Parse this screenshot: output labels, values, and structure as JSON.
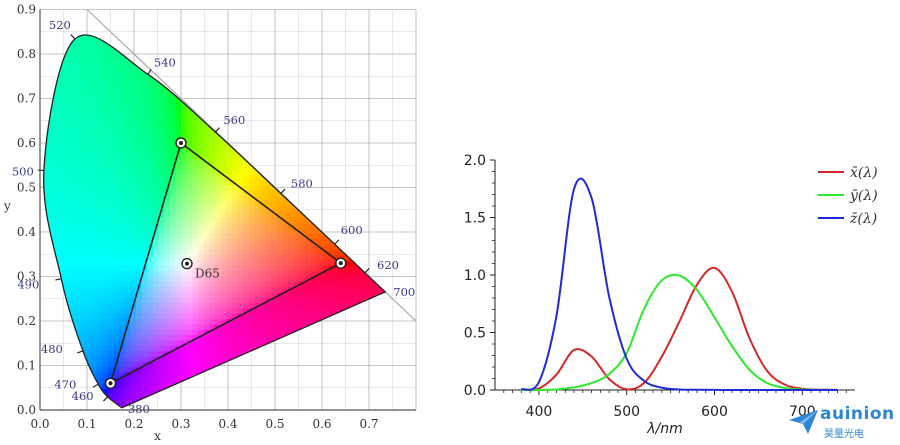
{
  "chart_data": [
    {
      "type": "scatter",
      "xlabel": "x",
      "ylabel": "y",
      "xlim": [
        0.0,
        0.8
      ],
      "ylim": [
        0.0,
        0.9
      ],
      "x_ticks": [
        "0.0",
        "0.1",
        "0.2",
        "0.3",
        "0.4",
        "0.5",
        "0.6",
        "0.7"
      ],
      "y_ticks": [
        "0.0",
        "0.1",
        "0.2",
        "0.3",
        "0.4",
        "0.5",
        "0.6",
        "0.7",
        "0.8",
        "0.9"
      ],
      "grid": true,
      "spectral_locus": [
        {
          "nm": "380",
          "x": 0.1741,
          "y": 0.005
        },
        {
          "nm": "460",
          "x": 0.144,
          "y": 0.0297
        },
        {
          "nm": "470",
          "x": 0.1241,
          "y": 0.0578
        },
        {
          "nm": "480",
          "x": 0.0913,
          "y": 0.1327
        },
        {
          "nm": "490",
          "x": 0.0454,
          "y": 0.295
        },
        {
          "nm": "500",
          "x": 0.0082,
          "y": 0.5384
        },
        {
          "nm": "520",
          "x": 0.0743,
          "y": 0.8338
        },
        {
          "nm": "540",
          "x": 0.2296,
          "y": 0.7543
        },
        {
          "nm": "560",
          "x": 0.3731,
          "y": 0.6245
        },
        {
          "nm": "580",
          "x": 0.5125,
          "y": 0.4866
        },
        {
          "nm": "600",
          "x": 0.627,
          "y": 0.3725
        },
        {
          "nm": "620",
          "x": 0.6915,
          "y": 0.3083
        },
        {
          "nm": "700",
          "x": 0.7347,
          "y": 0.2653
        }
      ],
      "gamut_triangle": [
        {
          "name": "red",
          "x": 0.64,
          "y": 0.33
        },
        {
          "name": "green",
          "x": 0.3,
          "y": 0.6
        },
        {
          "name": "blue",
          "x": 0.15,
          "y": 0.06
        }
      ],
      "white_point": {
        "label": "D65",
        "x": 0.3127,
        "y": 0.329
      }
    },
    {
      "type": "line",
      "xlabel": "λ/nm",
      "xlim": [
        350,
        760
      ],
      "ylim": [
        0.0,
        2.0
      ],
      "x_ticks": [
        "400",
        "500",
        "600",
        "700"
      ],
      "y_ticks": [
        "0.0",
        "0.5",
        "1.0",
        "1.5",
        "2.0"
      ],
      "grid": false,
      "legend_position": "top-right",
      "x": [
        380,
        400,
        420,
        440,
        460,
        480,
        500,
        520,
        540,
        560,
        580,
        600,
        620,
        640,
        660,
        680,
        700,
        720,
        740
      ],
      "series": [
        {
          "name": "x̄(λ)",
          "color": "#d62728",
          "values": [
            0.001,
            0.014,
            0.134,
            0.348,
            0.291,
            0.096,
            0.005,
            0.063,
            0.29,
            0.595,
            0.916,
            1.062,
            0.854,
            0.448,
            0.165,
            0.047,
            0.011,
            0.003,
            0.001
          ]
        },
        {
          "name": "ȳ(λ)",
          "color": "#2ee82e",
          "values": [
            0.0,
            0.0,
            0.004,
            0.023,
            0.06,
            0.139,
            0.323,
            0.71,
            0.954,
            0.995,
            0.87,
            0.631,
            0.381,
            0.175,
            0.061,
            0.017,
            0.004,
            0.001,
            0.0
          ]
        },
        {
          "name": "z̄(λ)",
          "color": "#1f2bd6",
          "values": [
            0.007,
            0.068,
            0.646,
            1.747,
            1.669,
            0.813,
            0.272,
            0.078,
            0.02,
            0.004,
            0.002,
            0.001,
            0.0,
            0.0,
            0.0,
            0.0,
            0.0,
            0.0,
            0.0
          ]
        }
      ]
    }
  ],
  "watermark": {
    "brand": "auinion",
    "sub": "昊量光电"
  },
  "colors": {
    "grid": "#9a9a9a",
    "frame": "#555555",
    "wavelength_label": "#3a3a8a",
    "watermark": "#2e86d4"
  }
}
